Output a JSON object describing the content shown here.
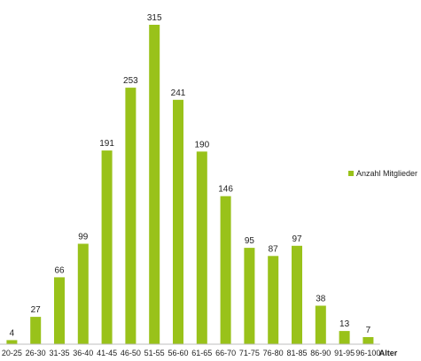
{
  "chart_data": {
    "type": "bar",
    "categories": [
      "20-25",
      "26-30",
      "31-35",
      "36-40",
      "41-45",
      "46-50",
      "51-55",
      "56-60",
      "61-65",
      "66-70",
      "71-75",
      "76-80",
      "81-85",
      "86-90",
      "91-95",
      "96-100"
    ],
    "series": [
      {
        "name": "Anzahl Mitglieder",
        "values": [
          4,
          27,
          66,
          99,
          191,
          253,
          315,
          241,
          190,
          146,
          95,
          87,
          97,
          38,
          13,
          7
        ]
      }
    ],
    "title": "",
    "xlabel": "Alter",
    "ylabel": "",
    "ylim": [
      0,
      315
    ],
    "grid": false,
    "legend_position": "right",
    "data_labels": true,
    "colors": {
      "bar": "#99c21a",
      "axis": "#bfbfbf",
      "text": "#222222"
    }
  }
}
